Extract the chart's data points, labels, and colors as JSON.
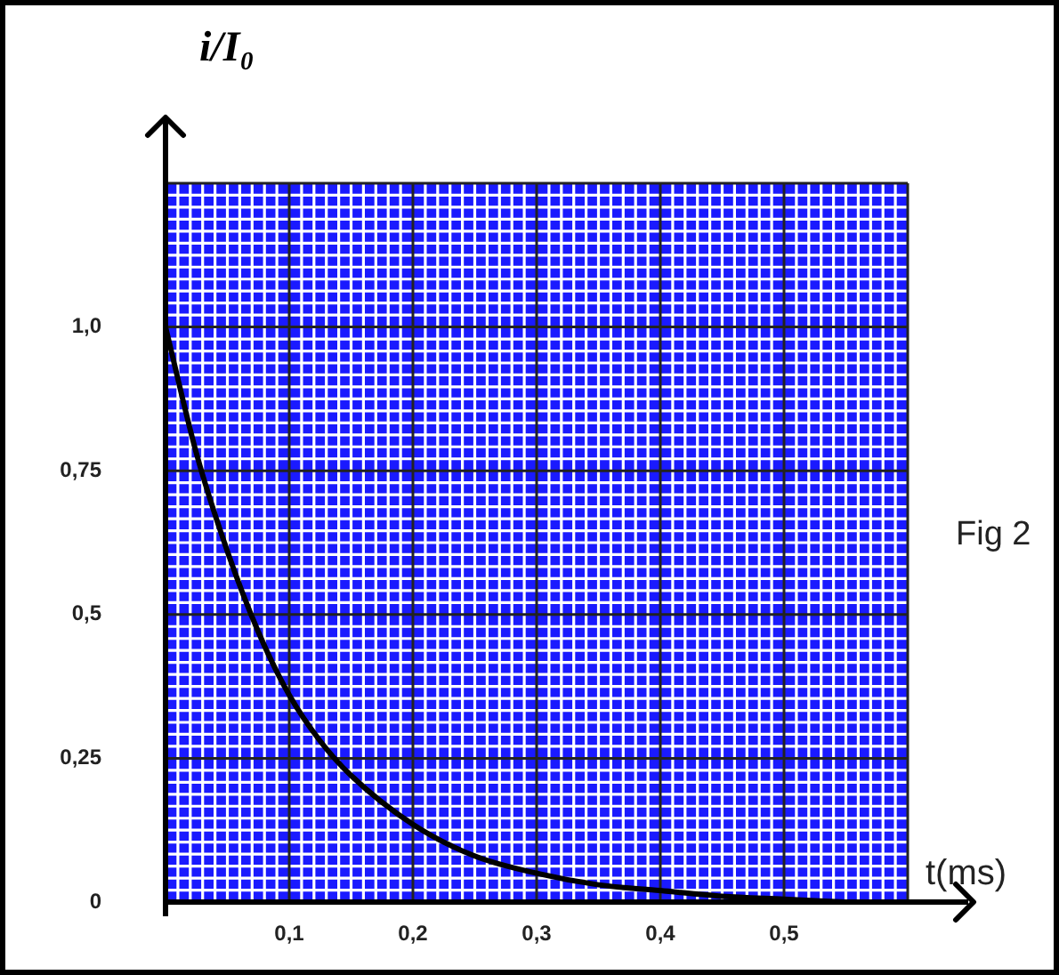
{
  "chart_data": {
    "type": "line",
    "ylabel": "i/I₀",
    "xlabel": "t(ms)",
    "annotations": [
      "Fig 2"
    ],
    "series": [
      {
        "color": "#000000",
        "x": [
          0,
          0.025,
          0.05,
          0.075,
          0.1,
          0.125,
          0.15,
          0.2,
          0.25,
          0.3,
          0.35,
          0.4,
          0.45,
          0.5,
          0.55
        ],
        "values": [
          1,
          0.78,
          0.61,
          0.47,
          0.36,
          0.28,
          0.22,
          0.135,
          0.08,
          0.05,
          0.03,
          0.02,
          0.01,
          0.005,
          0
        ]
      }
    ],
    "xlim": [
      0,
      0.6
    ],
    "ylim": [
      0,
      1.25
    ],
    "xticks": [
      {
        "value": 0,
        "label": null
      },
      {
        "value": 0.1,
        "label": "0,1"
      },
      {
        "value": 0.2,
        "label": "0,2"
      },
      {
        "value": 0.3,
        "label": "0,3"
      },
      {
        "value": 0.4,
        "label": "0,4"
      },
      {
        "value": 0.5,
        "label": "0,5"
      },
      {
        "value": 0.6,
        "label": null
      }
    ],
    "yticks": [
      {
        "value": 0,
        "label": "0"
      },
      {
        "value": 0.25,
        "label": "0,25"
      },
      {
        "value": 0.5,
        "label": "0,5"
      },
      {
        "value": 0.75,
        "label": "0,75"
      },
      {
        "value": 1,
        "label": "1,0"
      },
      {
        "value": 1.25,
        "label": null
      }
    ],
    "grid": true,
    "legend": false,
    "marker": "none",
    "line_style": "solid"
  }
}
